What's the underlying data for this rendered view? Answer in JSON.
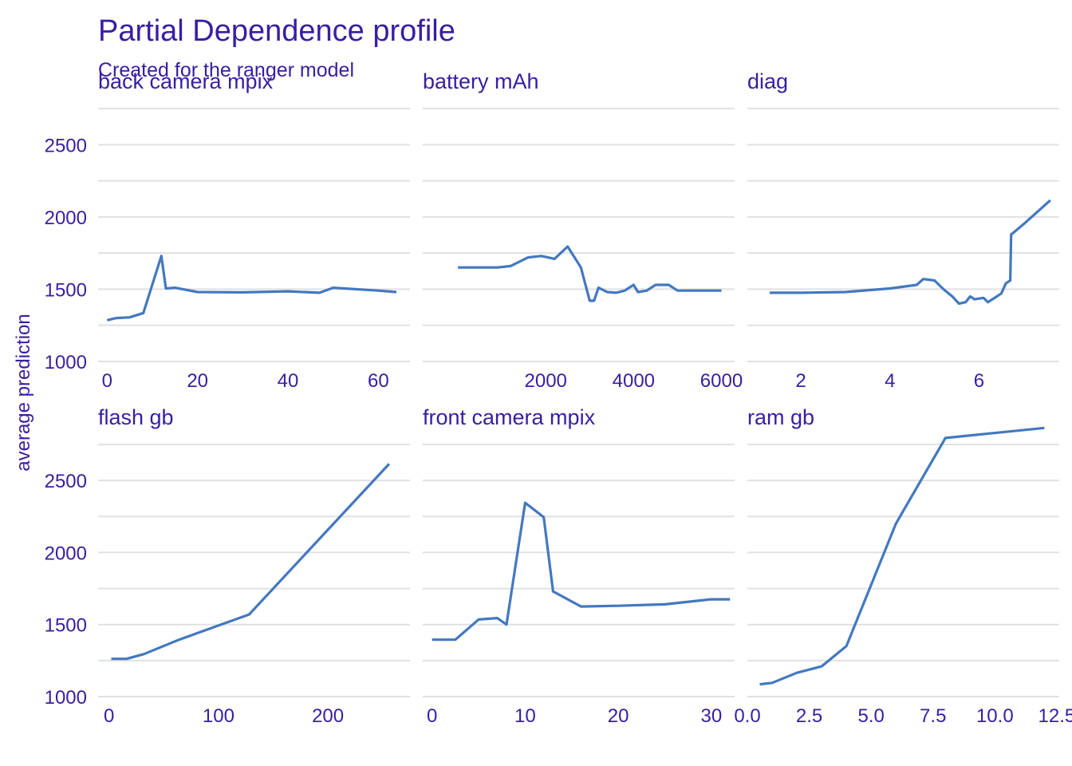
{
  "chart_data": {
    "type": "line",
    "title": "Partial Dependence profile",
    "subtitle": "Created for the ranger model",
    "ylabel": "average prediction",
    "ylim": [
      950,
      2800
    ],
    "yticks": [
      1000,
      1500,
      2000,
      2500
    ],
    "grid": true,
    "colors": {
      "line": "#4378bf",
      "text": "#371ea3",
      "grid": "#e1e1e1"
    },
    "panels": [
      {
        "label": "back_camera_mpix",
        "strip": "back  camera  mpix",
        "xlim": [
          -2,
          67
        ],
        "xticks": [
          0,
          20,
          40,
          60
        ],
        "xtick_labels": [
          "0",
          "20",
          "40",
          "60"
        ],
        "x": [
          0,
          2,
          5,
          8,
          12,
          13,
          15,
          20,
          30,
          40,
          47,
          50,
          60,
          64
        ],
        "y": [
          1285,
          1300,
          1305,
          1335,
          1730,
          1505,
          1510,
          1480,
          1478,
          1485,
          1475,
          1510,
          1490,
          1480
        ]
      },
      {
        "label": "battery_mAh",
        "strip": "battery  mAh",
        "xlim": [
          -800,
          6300
        ],
        "xticks": [
          2000,
          4000,
          6000
        ],
        "xtick_labels": [
          "2000",
          "4000",
          "6000"
        ],
        "x": [
          0,
          500,
          900,
          1200,
          1600,
          1900,
          2200,
          2500,
          2800,
          3000,
          3100,
          3200,
          3400,
          3600,
          3800,
          4000,
          4100,
          4300,
          4500,
          4800,
          5000,
          5500,
          6000
        ],
        "y": [
          1650,
          1650,
          1650,
          1660,
          1720,
          1730,
          1710,
          1795,
          1650,
          1420,
          1420,
          1510,
          1480,
          1475,
          1490,
          1530,
          1480,
          1490,
          1530,
          1530,
          1490,
          1490,
          1490
        ],
        "xmin_label_hidden": true
      },
      {
        "label": "diag",
        "strip": "diag",
        "xlim": [
          0.8,
          7.8
        ],
        "xticks": [
          2,
          4,
          6
        ],
        "xtick_labels": [
          "2",
          "4",
          "6"
        ],
        "x": [
          1.3,
          2.0,
          3.0,
          4.0,
          4.6,
          4.75,
          5.0,
          5.2,
          5.4,
          5.55,
          5.7,
          5.8,
          5.9,
          6.1,
          6.2,
          6.3,
          6.5,
          6.6,
          6.7,
          6.72,
          6.75,
          7.0,
          7.6
        ],
        "y": [
          1475,
          1475,
          1480,
          1505,
          1530,
          1570,
          1560,
          1500,
          1450,
          1400,
          1410,
          1450,
          1430,
          1440,
          1410,
          1430,
          1470,
          1540,
          1560,
          1880,
          1885,
          1950,
          2115
        ]
      },
      {
        "label": "flash_gb",
        "strip": "flash  gb",
        "xlim": [
          -10,
          275
        ],
        "xticks": [
          0,
          100,
          200
        ],
        "xtick_labels": [
          "0",
          "100",
          "200"
        ],
        "x": [
          2,
          16,
          32,
          64,
          128,
          256
        ],
        "y": [
          1262,
          1262,
          1295,
          1395,
          1570,
          2615
        ]
      },
      {
        "label": "front_camera_mpix",
        "strip": "front  camera  mpix",
        "xlim": [
          -1,
          32.5
        ],
        "xticks": [
          0,
          10,
          20,
          30
        ],
        "xtick_labels": [
          "0",
          "10",
          "20",
          "30"
        ],
        "x": [
          0,
          2.5,
          5,
          7,
          8,
          10,
          12,
          13,
          16,
          20,
          25,
          30,
          32
        ],
        "y": [
          1395,
          1395,
          1535,
          1545,
          1500,
          2345,
          2245,
          1730,
          1625,
          1630,
          1640,
          1675,
          1675
        ]
      },
      {
        "label": "ram_gb",
        "strip": "ram  gb",
        "xlim": [
          0,
          12.6
        ],
        "xticks": [
          0,
          2.5,
          5,
          7.5,
          10,
          12.5
        ],
        "xtick_labels": [
          "0.0",
          "2.5",
          "5.0",
          "7.5",
          "10.0",
          "12.5"
        ],
        "x": [
          0.5,
          1,
          2,
          3,
          4,
          6,
          8,
          12
        ],
        "y": [
          1085,
          1095,
          1165,
          1210,
          1350,
          2200,
          2795,
          2865
        ]
      }
    ]
  }
}
